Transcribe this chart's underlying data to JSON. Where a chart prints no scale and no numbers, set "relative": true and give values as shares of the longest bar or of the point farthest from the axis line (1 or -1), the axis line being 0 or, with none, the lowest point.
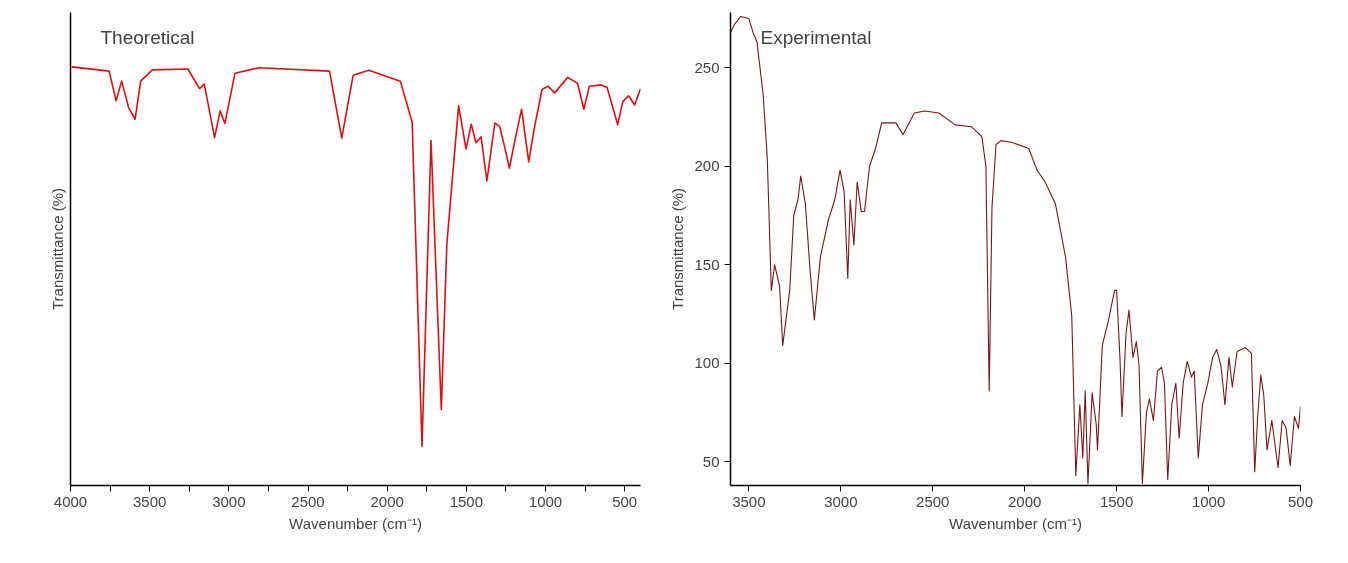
{
  "chart_data": [
    {
      "type": "line",
      "title": "Theoretical",
      "xlabel": "Wavenumber (cm⁻¹)",
      "ylabel": "Transmittance (%)",
      "relative": true,
      "tick_labels": "x",
      "grid": false,
      "marker": "none",
      "line_style": "solid",
      "xlim": [
        4000,
        400
      ],
      "xticks": [
        4000,
        {
          "value": 3750,
          "label": null
        },
        3500,
        {
          "value": 3250,
          "label": null
        },
        3000,
        {
          "value": 2750,
          "label": null
        },
        2500,
        {
          "value": 2250,
          "label": null
        },
        2000,
        {
          "value": 1750,
          "label": null
        },
        1500,
        {
          "value": 1250,
          "label": null
        },
        1000,
        {
          "value": 750,
          "label": null
        },
        500
      ],
      "series": [
        {
          "color": "#e01010",
          "x": [
            3993,
            3756,
            3712,
            3677,
            3632,
            3592,
            3557,
            3483,
            3259,
            3185,
            3155,
            3090,
            3055,
            3025,
            2961,
            2812,
            2364,
            2287,
            2215,
            2116,
            1917,
            1842,
            1780,
            1723,
            1658,
            1623,
            1549,
            1502,
            1469,
            1439,
            1407,
            1370,
            1320,
            1290,
            1258,
            1228,
            1196,
            1151,
            1106,
            1071,
            1022,
            984,
            942,
            860,
            798,
            758,
            723,
            649,
            611,
            544,
            512,
            475,
            437,
            400
          ],
          "values": [
            1.0,
            0.99,
            0.919,
            0.966,
            0.902,
            0.875,
            0.966,
            0.993,
            0.995,
            0.948,
            0.959,
            0.831,
            0.895,
            0.865,
            0.985,
            0.998,
            0.99,
            0.83,
            0.98,
            0.992,
            0.966,
            0.868,
            0.093,
            0.824,
            0.181,
            0.578,
            0.907,
            0.804,
            0.863,
            0.819,
            0.833,
            0.728,
            0.866,
            0.858,
            0.809,
            0.758,
            0.819,
            0.899,
            0.773,
            0.853,
            0.946,
            0.954,
            0.938,
            0.975,
            0.961,
            0.899,
            0.954,
            0.957,
            0.951,
            0.862,
            0.917,
            0.931,
            0.909,
            0.948
          ]
        }
      ]
    },
    {
      "type": "line",
      "title": "Experimental",
      "xlabel": "Wavenumber (cm⁻¹)",
      "ylabel": "Transmittance (%)",
      "grid": false,
      "marker": "none",
      "line_style": "solid",
      "xlim": [
        3600,
        500
      ],
      "ylim": [
        38,
        278
      ],
      "xticks": [
        3500,
        3000,
        2500,
        2000,
        1500,
        1000,
        500
      ],
      "yticks": [
        50,
        100,
        150,
        200,
        250
      ],
      "series": [
        {
          "color": "#7a1515",
          "x": [
            3600,
            3578,
            3544,
            3500,
            3478,
            3456,
            3422,
            3400,
            3378,
            3360,
            3333,
            3316,
            3278,
            3256,
            3233,
            3218,
            3193,
            3167,
            3144,
            3111,
            3067,
            3033,
            3004,
            2982,
            2962,
            2949,
            2929,
            2911,
            2889,
            2871,
            2844,
            2811,
            2778,
            2700,
            2662,
            2600,
            2544,
            2467,
            2378,
            2289,
            2233,
            2211,
            2193,
            2178,
            2156,
            2129,
            2067,
            1978,
            1933,
            1889,
            1833,
            1778,
            1744,
            1722,
            1700,
            1684,
            1671,
            1656,
            1633,
            1611,
            1604,
            1578,
            1544,
            1511,
            1500,
            1482,
            1471,
            1449,
            1433,
            1411,
            1393,
            1378,
            1360,
            1338,
            1322,
            1300,
            1278,
            1256,
            1240,
            1222,
            1200,
            1178,
            1160,
            1138,
            1116,
            1093,
            1078,
            1056,
            1033,
            1004,
            978,
            956,
            933,
            911,
            889,
            871,
            845,
            800,
            767,
            749,
            733,
            716,
            700,
            682,
            656,
            622,
            600,
            578,
            556,
            533,
            511,
            500
          ],
          "values": [
            268,
            272,
            276,
            275,
            268,
            263,
            236,
            204,
            137,
            150,
            139,
            109,
            137,
            175,
            183,
            195,
            181,
            147,
            122,
            154,
            173,
            183,
            198,
            187,
            143,
            183,
            160,
            192,
            177,
            177,
            200,
            209,
            222,
            222,
            216,
            227,
            228,
            227,
            221,
            220,
            215,
            200,
            86,
            179,
            211,
            213,
            212,
            209,
            198,
            192,
            181,
            154,
            124,
            43,
            79,
            52,
            86,
            39,
            85,
            69,
            56,
            109,
            122,
            137,
            137,
            103,
            73,
            115,
            127,
            103,
            111,
            99,
            39,
            75,
            82,
            71,
            96,
            98,
            90,
            41,
            79,
            90,
            62,
            90,
            101,
            93,
            96,
            52,
            79,
            90,
            103,
            107,
            99,
            79,
            103,
            88,
            106,
            108,
            105,
            45,
            73,
            94,
            84,
            56,
            71,
            47,
            71,
            67,
            48,
            73,
            67,
            78
          ]
        }
      ]
    }
  ]
}
